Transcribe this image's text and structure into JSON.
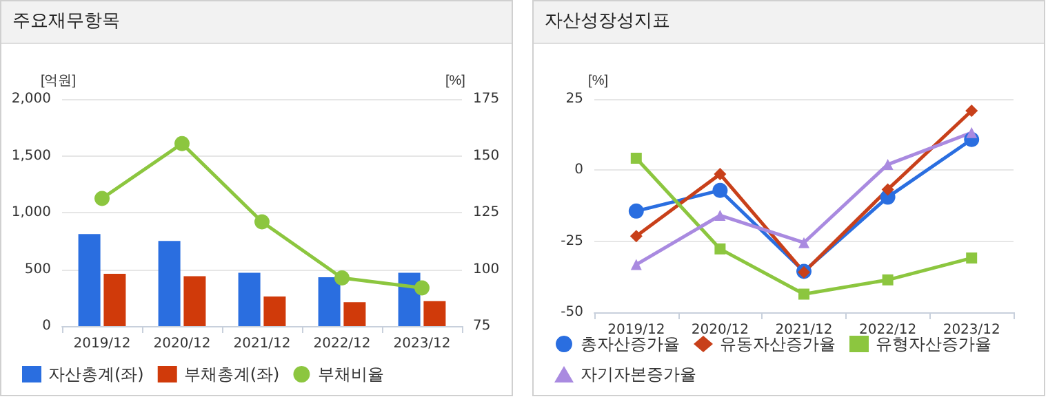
{
  "chart_data": [
    {
      "type": "bar",
      "title": "주요재무항목",
      "ylabel": "[억원]",
      "y2label": "[%]",
      "categories": [
        "2019/12",
        "2020/12",
        "2021/12",
        "2022/12",
        "2023/12"
      ],
      "series": [
        {
          "name": "자산총계(좌)",
          "color": "#2a6ee0",
          "values": [
            810,
            750,
            470,
            430,
            470
          ]
        },
        {
          "name": "부채총계(좌)",
          "color": "#d03a0a",
          "values": [
            460,
            440,
            260,
            210,
            220
          ]
        },
        {
          "name": "부채비율",
          "type": "line",
          "axis": "y2",
          "marker": "circle",
          "color": "#8cc63f",
          "values": [
            131.2,
            155.4,
            120.9,
            96.2,
            91.8
          ]
        }
      ],
      "ylim": [
        0,
        2000
      ],
      "yticks": [
        0,
        500,
        {
          "value": 1000,
          "label": "1,000"
        },
        {
          "value": 1500,
          "label": "1,500"
        },
        {
          "value": 2000,
          "label": "2,000"
        }
      ],
      "y2lim": [
        75,
        175
      ],
      "y2ticks": [
        75,
        100,
        125,
        150,
        175
      ],
      "grid": "y",
      "legend": "bottom"
    },
    {
      "type": "line",
      "title": "자산성장성지표",
      "ylabel": "[%]",
      "categories": [
        "2019/12",
        "2020/12",
        "2021/12",
        "2022/12",
        "2023/12"
      ],
      "series": [
        {
          "name": "총자산증가율",
          "marker": "circle",
          "color": "#2a6ee0",
          "values": [
            -14.4,
            -7.1,
            -35.6,
            -9.5,
            10.8
          ]
        },
        {
          "name": "유동자산증가율",
          "marker": "diamond",
          "color": "#c8401a",
          "values": [
            -23.2,
            -1.4,
            -35.9,
            -6.8,
            20.9
          ]
        },
        {
          "name": "유형자산증가율",
          "marker": "square",
          "color": "#8cc63f",
          "values": [
            4.2,
            -27.7,
            -43.6,
            -38.6,
            -30.9
          ]
        },
        {
          "name": "자기자본증가율",
          "marker": "triangle",
          "color": "#a98ae0",
          "values": [
            -33.2,
            -15.9,
            -25.5,
            2.0,
            13.2
          ]
        }
      ],
      "ylim": [
        -50,
        25
      ],
      "yticks": [
        -50,
        -25,
        0,
        25
      ],
      "grid": "y",
      "legend": "bottom"
    }
  ]
}
